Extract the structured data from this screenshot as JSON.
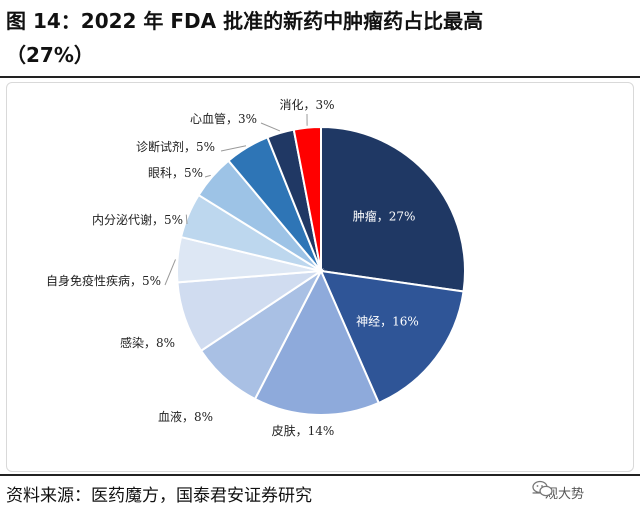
{
  "figure": {
    "title_line1": "图 14：2022 年 FDA 批准的新药中肿瘤药占比最高",
    "title_line2": "（27%）",
    "source": "资料来源：医药魔方，国泰君安证券研究",
    "watermark_text": "一观大势",
    "watermark_icon": "wechat-icon"
  },
  "chart_data": {
    "type": "pie",
    "title": "2022 年 FDA 批准的新药中肿瘤药占比最高（27%）",
    "start_angle_deg": 0,
    "direction": "clockwise",
    "slices": [
      {
        "label": "肿瘤",
        "value": 27,
        "display": "肿瘤，27%",
        "color": "#1f3864",
        "label_inside": true
      },
      {
        "label": "神经",
        "value": 16,
        "display": "神经，16%",
        "color": "#2f5597",
        "label_inside": true
      },
      {
        "label": "皮肤",
        "value": 14,
        "display": "皮肤，14%",
        "color": "#8eaadb",
        "label_inside": false
      },
      {
        "label": "血液",
        "value": 8,
        "display": "血液，8%",
        "color": "#a9c0e4",
        "label_inside": false
      },
      {
        "label": "感染",
        "value": 8,
        "display": "感染，8%",
        "color": "#d0dcf0",
        "label_inside": false
      },
      {
        "label": "自身免疫性疾病",
        "value": 5,
        "display": "自身免疫性疾病，5%",
        "color": "#dde7f4",
        "label_inside": false
      },
      {
        "label": "内分泌代谢",
        "value": 5,
        "display": "内分泌代谢，5%",
        "color": "#bdd7ee",
        "label_inside": false
      },
      {
        "label": "眼科",
        "value": 5,
        "display": "眼科，5%",
        "color": "#9dc3e6",
        "label_inside": false
      },
      {
        "label": "诊断试剂",
        "value": 5,
        "display": "诊断试剂，5%",
        "color": "#2e75b6",
        "label_inside": false
      },
      {
        "label": "心血管",
        "value": 3,
        "display": "心血管，3%",
        "color": "#203864",
        "label_inside": false
      },
      {
        "label": "消化",
        "value": 3,
        "display": "消化，3%",
        "color": "#ff0000",
        "label_inside": false
      }
    ]
  }
}
